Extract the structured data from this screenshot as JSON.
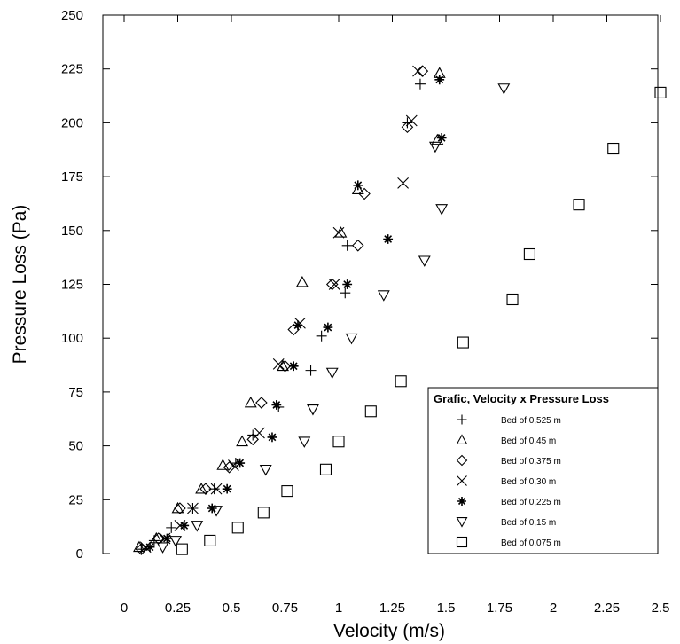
{
  "chart_data": {
    "type": "scatter",
    "title": "",
    "xlabel": "Velocity (m/s)",
    "ylabel": "Pressure Loss (Pa)",
    "xlim": [
      0,
      2.5
    ],
    "ylim": [
      0,
      250
    ],
    "xticks": [
      0,
      0.25,
      0.5,
      0.75,
      1,
      1.25,
      1.5,
      1.75,
      2,
      2.25,
      2.5
    ],
    "xtick_labels": [
      "0",
      "0.25",
      "0.5",
      "0.75",
      "1",
      "1.25",
      "1.5",
      "1.75",
      "2",
      "2.25",
      "2.5"
    ],
    "yticks": [
      0,
      25,
      50,
      75,
      100,
      125,
      150,
      175,
      200,
      225,
      250
    ],
    "ytick_labels": [
      "0",
      "25",
      "50",
      "75",
      "100",
      "125",
      "150",
      "175",
      "200",
      "225",
      "250"
    ],
    "grid": false,
    "legend": {
      "title": "Grafic, Velocity x Pressure Loss",
      "position": "lower-right"
    },
    "series": [
      {
        "name": "Bed of 0,525 m",
        "marker": "plus",
        "points": [
          [
            0.08,
            2
          ],
          [
            0.14,
            6
          ],
          [
            0.22,
            12
          ],
          [
            0.32,
            21
          ],
          [
            0.42,
            30
          ],
          [
            0.52,
            42
          ],
          [
            0.6,
            55
          ],
          [
            0.72,
            68
          ],
          [
            0.87,
            85
          ],
          [
            0.92,
            101
          ],
          [
            1.03,
            121
          ],
          [
            1.04,
            143
          ],
          [
            1.32,
            200
          ],
          [
            1.38,
            218
          ]
        ]
      },
      {
        "name": "Bed of 0,45 m",
        "marker": "triangle",
        "points": [
          [
            0.07,
            3
          ],
          [
            0.15,
            7
          ],
          [
            0.25,
            21
          ],
          [
            0.36,
            30
          ],
          [
            0.46,
            41
          ],
          [
            0.55,
            52
          ],
          [
            0.59,
            70
          ],
          [
            0.74,
            87
          ],
          [
            0.83,
            126
          ],
          [
            1.01,
            149
          ],
          [
            1.09,
            169
          ],
          [
            1.46,
            192
          ],
          [
            1.47,
            223
          ]
        ]
      },
      {
        "name": "Bed of 0,375 m",
        "marker": "diamond",
        "points": [
          [
            0.08,
            2
          ],
          [
            0.16,
            7
          ],
          [
            0.26,
            21
          ],
          [
            0.38,
            30
          ],
          [
            0.49,
            40
          ],
          [
            0.6,
            53
          ],
          [
            0.64,
            70
          ],
          [
            0.75,
            87
          ],
          [
            0.79,
            104
          ],
          [
            0.97,
            125
          ],
          [
            1.09,
            143
          ],
          [
            1.12,
            167
          ],
          [
            1.32,
            198
          ],
          [
            1.39,
            224
          ]
        ]
      },
      {
        "name": "Bed of 0,30 m",
        "marker": "x",
        "points": [
          [
            0.1,
            3
          ],
          [
            0.19,
            7
          ],
          [
            0.26,
            13
          ],
          [
            0.32,
            21
          ],
          [
            0.43,
            30
          ],
          [
            0.51,
            41
          ],
          [
            0.63,
            56
          ],
          [
            0.72,
            88
          ],
          [
            0.82,
            107
          ],
          [
            0.98,
            125
          ],
          [
            1.0,
            149
          ],
          [
            1.3,
            172
          ],
          [
            1.34,
            201
          ],
          [
            1.37,
            224
          ]
        ]
      },
      {
        "name": "Bed of 0,225 m",
        "marker": "star",
        "points": [
          [
            0.12,
            3
          ],
          [
            0.2,
            7
          ],
          [
            0.28,
            13
          ],
          [
            0.41,
            21
          ],
          [
            0.48,
            30
          ],
          [
            0.54,
            42
          ],
          [
            0.69,
            54
          ],
          [
            0.71,
            69
          ],
          [
            0.79,
            87
          ],
          [
            0.81,
            106
          ],
          [
            0.95,
            105
          ],
          [
            1.04,
            125
          ],
          [
            1.23,
            146
          ],
          [
            1.09,
            171
          ],
          [
            1.48,
            193
          ],
          [
            1.47,
            220
          ]
        ]
      },
      {
        "name": "Bed of 0,15 m",
        "marker": "triangle-down",
        "points": [
          [
            0.18,
            3
          ],
          [
            0.24,
            6
          ],
          [
            0.34,
            13
          ],
          [
            0.43,
            20
          ],
          [
            0.66,
            39
          ],
          [
            0.84,
            52
          ],
          [
            0.88,
            67
          ],
          [
            0.97,
            84
          ],
          [
            1.06,
            100
          ],
          [
            1.21,
            120
          ],
          [
            1.4,
            136
          ],
          [
            1.48,
            160
          ],
          [
            1.45,
            189
          ],
          [
            1.77,
            216
          ]
        ]
      },
      {
        "name": "Bed of 0,075 m",
        "marker": "square",
        "points": [
          [
            0.27,
            2
          ],
          [
            0.4,
            6
          ],
          [
            0.53,
            12
          ],
          [
            0.65,
            19
          ],
          [
            0.76,
            29
          ],
          [
            0.94,
            39
          ],
          [
            1.0,
            52
          ],
          [
            1.15,
            66
          ],
          [
            1.29,
            80
          ],
          [
            1.58,
            98
          ],
          [
            1.81,
            118
          ],
          [
            1.89,
            139
          ],
          [
            2.12,
            162
          ],
          [
            2.28,
            188
          ],
          [
            2.5,
            214
          ]
        ]
      }
    ]
  }
}
